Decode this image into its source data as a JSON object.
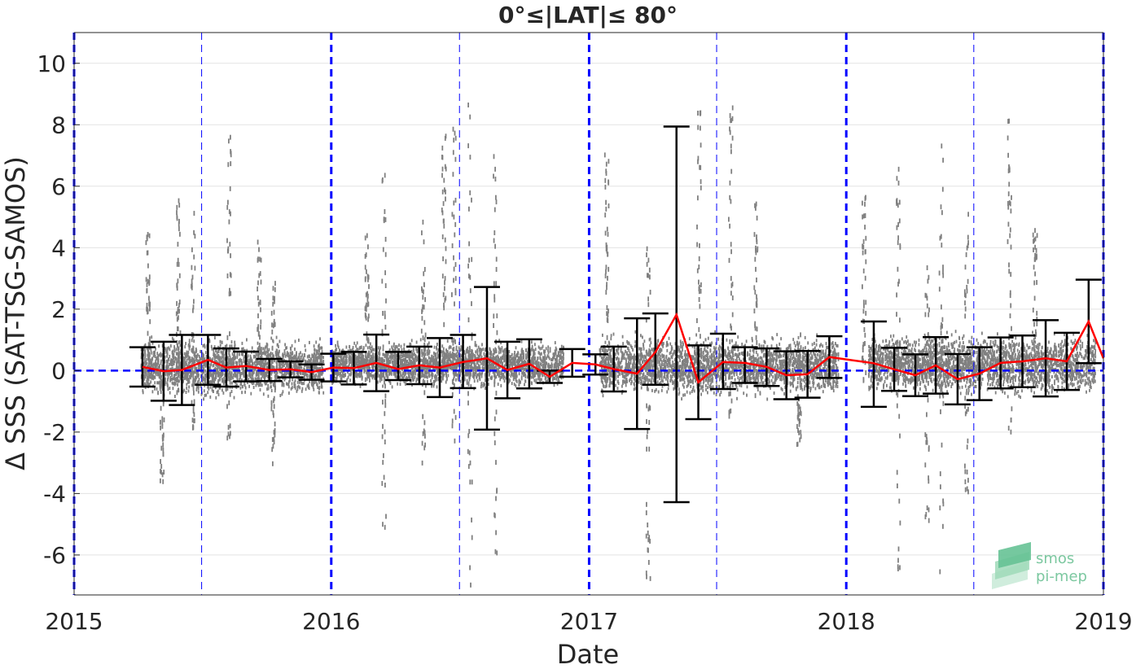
{
  "chart_data": {
    "type": "scatter",
    "title": "0°≤|LAT|≤ 80°",
    "xlabel": "Date",
    "ylabel": "Δ SSS (SAT-TSG-SAMOS)",
    "xlim": [
      "2015-01-01",
      "2019-01-01"
    ],
    "ylim": [
      -7.3,
      11
    ],
    "x_ticks": [
      "2015",
      "2016",
      "2017",
      "2018",
      "2019"
    ],
    "y_ticks": [
      10,
      8,
      6,
      4,
      2,
      0,
      -2,
      -4,
      -6
    ],
    "grid": "horizontal",
    "colors": {
      "scatter": "#808080",
      "mean_line": "#ff0000",
      "error_bars": "#000000",
      "year_lines": "#0000ff",
      "zero_line": "#0000ff"
    },
    "reference_lines": {
      "zero": 0,
      "years": [
        "2015-01-01",
        "2016-01-01",
        "2017-01-01",
        "2018-01-01",
        "2019-01-01"
      ],
      "half_years": [
        "2015-07-01",
        "2016-07-01",
        "2017-07-01",
        "2018-07-01"
      ]
    },
    "series": [
      {
        "type": "errorbar",
        "points": [
          {
            "x": "2015-04-08",
            "mean": 0.12,
            "low": -0.52,
            "high": 0.76
          },
          {
            "x": "2015-05-08",
            "mean": -0.02,
            "low": -0.98,
            "high": 0.94
          },
          {
            "x": "2015-06-03",
            "mean": 0.02,
            "low": -1.12,
            "high": 1.16
          },
          {
            "x": "2015-07-10",
            "mean": 0.35,
            "low": -0.46,
            "high": 1.16
          },
          {
            "x": "2015-08-05",
            "mean": 0.1,
            "low": -0.52,
            "high": 0.72
          },
          {
            "x": "2015-09-02",
            "mean": 0.15,
            "low": -0.35,
            "high": 0.62
          },
          {
            "x": "2015-10-05",
            "mean": 0.02,
            "low": -0.34,
            "high": 0.38
          },
          {
            "x": "2015-11-04",
            "mean": 0.04,
            "low": -0.22,
            "high": 0.3
          },
          {
            "x": "2015-12-04",
            "mean": -0.05,
            "low": -0.3,
            "high": 0.2
          },
          {
            "x": "2016-01-04",
            "mean": 0.1,
            "low": -0.35,
            "high": 0.55
          },
          {
            "x": "2016-02-02",
            "mean": 0.08,
            "low": -0.45,
            "high": 0.61
          },
          {
            "x": "2016-03-05",
            "mean": 0.25,
            "low": -0.67,
            "high": 1.17
          },
          {
            "x": "2016-04-05",
            "mean": 0.05,
            "low": -0.31,
            "high": 0.61
          },
          {
            "x": "2016-05-05",
            "mean": 0.17,
            "low": -0.44,
            "high": 0.78
          },
          {
            "x": "2016-06-03",
            "mean": 0.1,
            "low": -0.86,
            "high": 1.06
          },
          {
            "x": "2016-07-06",
            "mean": 0.28,
            "low": -0.57,
            "high": 1.16
          },
          {
            "x": "2016-08-09",
            "mean": 0.4,
            "low": -1.92,
            "high": 2.72
          },
          {
            "x": "2016-09-07",
            "mean": 0.02,
            "low": -0.9,
            "high": 0.94
          },
          {
            "x": "2016-10-08",
            "mean": 0.22,
            "low": -0.58,
            "high": 1.02
          },
          {
            "x": "2016-11-06",
            "mean": -0.2,
            "low": -0.4,
            "high": 0.0
          },
          {
            "x": "2016-12-08",
            "mean": 0.25,
            "low": -0.2,
            "high": 0.7
          },
          {
            "x": "2017-01-10",
            "mean": 0.2,
            "low": -0.13,
            "high": 0.53
          },
          {
            "x": "2017-02-05",
            "mean": 0.05,
            "low": -0.68,
            "high": 0.78
          },
          {
            "x": "2017-03-10",
            "mean": -0.1,
            "low": -1.9,
            "high": 1.7
          },
          {
            "x": "2017-04-05",
            "mean": 0.6,
            "low": -0.46,
            "high": 1.86
          },
          {
            "x": "2017-05-05",
            "mean": 1.82,
            "low": -4.28,
            "high": 7.94
          },
          {
            "x": "2017-06-05",
            "mean": -0.38,
            "low": -1.58,
            "high": 0.82
          },
          {
            "x": "2017-07-10",
            "mean": 0.28,
            "low": -0.6,
            "high": 1.2
          },
          {
            "x": "2017-08-10",
            "mean": 0.25,
            "low": -0.4,
            "high": 0.76
          },
          {
            "x": "2017-09-10",
            "mean": 0.12,
            "low": -0.5,
            "high": 0.72
          },
          {
            "x": "2017-10-08",
            "mean": -0.15,
            "low": -0.93,
            "high": 0.63
          },
          {
            "x": "2017-11-07",
            "mean": -0.12,
            "low": -0.88,
            "high": 0.64
          },
          {
            "x": "2017-12-08",
            "mean": 0.44,
            "low": -0.24,
            "high": 1.12
          },
          {
            "x": "2018-02-09",
            "mean": 0.24,
            "low": -1.18,
            "high": 1.6
          },
          {
            "x": "2018-03-10",
            "mean": 0.04,
            "low": -0.66,
            "high": 0.74
          },
          {
            "x": "2018-04-09",
            "mean": -0.15,
            "low": -0.83,
            "high": 0.53
          },
          {
            "x": "2018-05-08",
            "mean": 0.17,
            "low": -0.75,
            "high": 1.09
          },
          {
            "x": "2018-06-08",
            "mean": -0.28,
            "low": -1.1,
            "high": 0.54
          },
          {
            "x": "2018-07-09",
            "mean": -0.1,
            "low": -0.96,
            "high": 0.76
          },
          {
            "x": "2018-08-08",
            "mean": 0.25,
            "low": -0.58,
            "high": 1.08
          },
          {
            "x": "2018-09-08",
            "mean": 0.3,
            "low": -0.54,
            "high": 1.14
          },
          {
            "x": "2018-10-11",
            "mean": 0.4,
            "low": -0.84,
            "high": 1.64
          },
          {
            "x": "2018-11-10",
            "mean": 0.3,
            "low": -0.63,
            "high": 1.23
          },
          {
            "x": "2018-12-11",
            "mean": 1.6,
            "low": 0.24,
            "high": 2.96
          },
          {
            "x": "2019-01-01",
            "mean": 0.4,
            "low": 0.4,
            "high": 0.4
          }
        ]
      }
    ],
    "scatter_bands": [
      {
        "x_start": "2015-04-05",
        "x_end": "2015-12-20",
        "low": -1.0,
        "high": 1.2
      },
      {
        "x_start": "2016-01-01",
        "x_end": "2016-11-25",
        "low": -0.7,
        "high": 1.1
      },
      {
        "x_start": "2017-01-15",
        "x_end": "2017-12-20",
        "low": -1.0,
        "high": 1.3
      },
      {
        "x_start": "2018-02-01",
        "x_end": "2018-12-20",
        "low": -1.0,
        "high": 1.4
      }
    ],
    "scatter_spikes": [
      {
        "x": "2015-04-15",
        "low": -0.5,
        "high": 4.5
      },
      {
        "x": "2015-05-05",
        "low": -3.8,
        "high": 0.2
      },
      {
        "x": "2015-05-28",
        "low": -1.0,
        "high": 5.7
      },
      {
        "x": "2015-06-18",
        "low": -2.0,
        "high": 5.5
      },
      {
        "x": "2015-08-08",
        "low": -2.3,
        "high": 8.0
      },
      {
        "x": "2015-09-20",
        "low": -0.5,
        "high": 4.2
      },
      {
        "x": "2015-10-10",
        "low": -3.1,
        "high": 3.3
      },
      {
        "x": "2016-02-20",
        "low": -0.3,
        "high": 4.5
      },
      {
        "x": "2016-03-15",
        "low": -5.1,
        "high": 6.4
      },
      {
        "x": "2016-05-10",
        "low": -3.3,
        "high": 5.0
      },
      {
        "x": "2016-06-08",
        "low": -0.5,
        "high": 8.4
      },
      {
        "x": "2016-06-22",
        "low": -2.8,
        "high": 8.0
      },
      {
        "x": "2016-07-15",
        "low": -7.0,
        "high": 9.0
      },
      {
        "x": "2016-08-20",
        "low": -6.2,
        "high": 7.0
      },
      {
        "x": "2017-01-25",
        "low": -0.4,
        "high": 7.1
      },
      {
        "x": "2017-03-25",
        "low": -6.9,
        "high": 4.5
      },
      {
        "x": "2017-06-05",
        "low": -0.6,
        "high": 8.5
      },
      {
        "x": "2017-07-20",
        "low": -1.5,
        "high": 8.6
      },
      {
        "x": "2017-08-25",
        "low": -1.2,
        "high": 5.5
      },
      {
        "x": "2017-10-25",
        "low": -2.7,
        "high": 1.2
      },
      {
        "x": "2018-01-25",
        "low": -0.4,
        "high": 5.7
      },
      {
        "x": "2018-03-15",
        "low": -6.8,
        "high": 6.6
      },
      {
        "x": "2018-04-25",
        "low": -4.9,
        "high": 3.6
      },
      {
        "x": "2018-05-15",
        "low": -7.3,
        "high": 7.5
      },
      {
        "x": "2018-06-20",
        "low": -4.0,
        "high": 5.2
      },
      {
        "x": "2018-08-20",
        "low": -2.0,
        "high": 8.2
      },
      {
        "x": "2018-09-25",
        "low": -0.5,
        "high": 4.6
      }
    ]
  },
  "logo": {
    "line1": "smos",
    "line2": "pi-mep"
  }
}
